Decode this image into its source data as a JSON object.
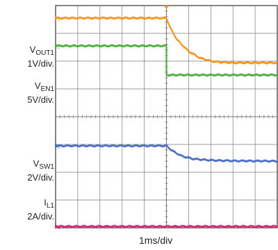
{
  "chart_data": {
    "type": "line",
    "title": "",
    "xlabel": "1ms/div",
    "grid": true,
    "divisions": {
      "x": 10,
      "y": 8
    },
    "time_per_div_ms": 1,
    "trigger_time_ms": 5,
    "series": [
      {
        "name": "VOUT1",
        "label_main": "V",
        "label_sub": "OUT1",
        "scale": "1V/div.",
        "color": "#f7941d",
        "marker": "1",
        "points": [
          [
            0,
            7.55
          ],
          [
            5.0,
            7.55
          ],
          [
            5.2,
            7.15
          ],
          [
            5.5,
            6.75
          ],
          [
            6.0,
            6.35
          ],
          [
            6.5,
            6.12
          ],
          [
            7.0,
            6.0
          ],
          [
            7.5,
            5.96
          ],
          [
            8.0,
            5.94
          ],
          [
            10,
            5.94
          ]
        ]
      },
      {
        "name": "VEN1",
        "label_main": "V",
        "label_sub": "EN1",
        "scale": "5V/div.",
        "color": "#4caf3c",
        "marker": "2",
        "points": [
          [
            0,
            6.55
          ],
          [
            5.0,
            6.55
          ],
          [
            5.0,
            5.5
          ],
          [
            5.05,
            5.5
          ],
          [
            10,
            5.5
          ]
        ]
      },
      {
        "name": "VSW1",
        "label_main": "V",
        "label_sub": "SW1",
        "scale": "2V/div.",
        "color": "#4a6ec8",
        "marker": "3",
        "points": [
          [
            0,
            2.95
          ],
          [
            5.0,
            2.95
          ],
          [
            5.3,
            2.75
          ],
          [
            5.7,
            2.58
          ],
          [
            6.2,
            2.48
          ],
          [
            7.0,
            2.43
          ],
          [
            8.0,
            2.41
          ],
          [
            10,
            2.4
          ]
        ]
      },
      {
        "name": "IL1",
        "label_main": "I",
        "label_sub": "L1",
        "scale": "2A/div.",
        "color": "#e0257a",
        "marker": "4",
        "points": [
          [
            0,
            0.05
          ],
          [
            10,
            0.05
          ]
        ]
      }
    ]
  }
}
